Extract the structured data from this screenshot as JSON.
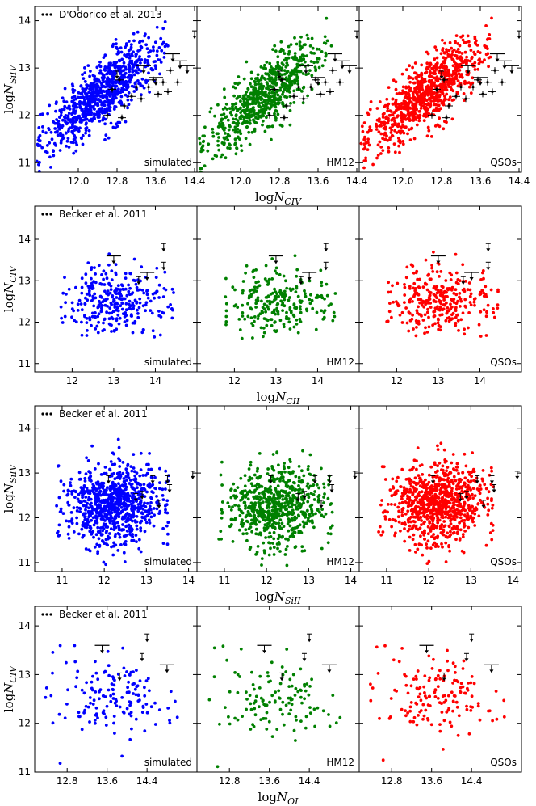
{
  "colors": {
    "simulated": "#0000ff",
    "HM12": "#008000",
    "QSOs": "#ff0000",
    "observations": "#000000"
  },
  "chart_data": [
    {
      "type": "scatter",
      "row_id": "row1",
      "legend": "D'Odorico et al. 2013",
      "xlabel": "logN_CIV",
      "ylabel": "logN_SiIV",
      "xlim": [
        11.1,
        14.45
      ],
      "ylim": [
        10.8,
        14.3
      ],
      "xticks": [
        "12.0",
        "12.8",
        "13.6",
        "14.4"
      ],
      "yticks": [
        "11",
        "12",
        "13",
        "14"
      ],
      "panels": [
        "simulated",
        "HM12",
        "QSOs"
      ],
      "simulated_cloud": {
        "x_range": [
          11.2,
          13.8
        ],
        "slope": 0.75,
        "intercept": 3.1,
        "scatter": 0.32,
        "n": 850
      },
      "observations": [
        {
          "x": 12.7,
          "y": 12.55,
          "type": "point"
        },
        {
          "x": 12.85,
          "y": 12.75,
          "type": "point"
        },
        {
          "x": 12.95,
          "y": 12.2,
          "type": "point"
        },
        {
          "x": 13.1,
          "y": 12.4,
          "type": "point"
        },
        {
          "x": 13.2,
          "y": 12.6,
          "type": "point"
        },
        {
          "x": 13.3,
          "y": 12.35,
          "type": "point"
        },
        {
          "x": 13.45,
          "y": 12.6,
          "type": "point"
        },
        {
          "x": 13.55,
          "y": 12.75,
          "type": "point"
        },
        {
          "x": 13.65,
          "y": 12.45,
          "type": "point"
        },
        {
          "x": 13.75,
          "y": 12.7,
          "type": "point"
        },
        {
          "x": 13.85,
          "y": 12.5,
          "type": "point"
        },
        {
          "x": 13.9,
          "y": 12.95,
          "type": "point"
        },
        {
          "x": 14.05,
          "y": 12.7,
          "type": "point"
        },
        {
          "x": 12.6,
          "y": 12.0,
          "type": "point"
        },
        {
          "x": 12.9,
          "y": 11.95,
          "type": "point"
        },
        {
          "x": 13.35,
          "y": 13.05,
          "type": "lower_x"
        },
        {
          "x": 13.6,
          "y": 12.8,
          "type": "lower_x"
        },
        {
          "x": 13.95,
          "y": 13.3,
          "type": "lower_x"
        },
        {
          "x": 14.1,
          "y": 13.15,
          "type": "lower_x"
        },
        {
          "x": 14.25,
          "y": 13.05,
          "type": "lower_x"
        },
        {
          "x": 14.4,
          "y": 13.7,
          "type": "upper_y"
        },
        {
          "x": 12.8,
          "y": 12.85,
          "type": "upper_y"
        }
      ]
    },
    {
      "type": "scatter",
      "row_id": "row2",
      "legend": "Becker et al. 2011",
      "xlabel": "logN_CII",
      "ylabel": "logN_CIV",
      "xlim": [
        11.1,
        15.0
      ],
      "ylim": [
        10.8,
        14.8
      ],
      "xticks": [
        "12",
        "13",
        "14"
      ],
      "yticks": [
        "11",
        "12",
        "13",
        "14"
      ],
      "panels": [
        "simulated",
        "HM12",
        "QSOs"
      ],
      "simulated_cloud": {
        "x_range": [
          11.8,
          14.4
        ],
        "slope": 0.0,
        "intercept": 12.5,
        "scatter": 0.42,
        "n": 300
      },
      "observations": [
        {
          "x": 13.0,
          "y": 13.6,
          "type": "lower_x"
        },
        {
          "x": 13.8,
          "y": 13.2,
          "type": "lower_x"
        },
        {
          "x": 14.2,
          "y": 13.8,
          "type": "upper_y"
        },
        {
          "x": 14.2,
          "y": 13.35,
          "type": "upper_y"
        },
        {
          "x": 13.6,
          "y": 13.0,
          "type": "upper_y"
        }
      ]
    },
    {
      "type": "scatter",
      "row_id": "row3",
      "legend": "Becker et al. 2011",
      "xlabel": "logN_SiII",
      "ylabel": "logN_SiIV",
      "xlim": [
        10.35,
        14.2
      ],
      "ylim": [
        10.8,
        14.5
      ],
      "xticks": [
        "11",
        "12",
        "13",
        "14"
      ],
      "yticks": [
        "11",
        "12",
        "13",
        "14"
      ],
      "panels": [
        "simulated",
        "HM12",
        "QSOs"
      ],
      "simulated_cloud": {
        "x_range": [
          10.9,
          13.5
        ],
        "slope": 0.0,
        "intercept": 12.3,
        "scatter": 0.45,
        "n": 850
      },
      "observations": [
        {
          "x": 12.1,
          "y": 12.85,
          "type": "upper_y"
        },
        {
          "x": 12.9,
          "y": 12.5,
          "type": "upper_y"
        },
        {
          "x": 12.75,
          "y": 12.45,
          "type": "upper_y"
        },
        {
          "x": 13.15,
          "y": 12.85,
          "type": "upper_y"
        },
        {
          "x": 13.3,
          "y": 12.3,
          "type": "upper_y"
        },
        {
          "x": 13.5,
          "y": 12.85,
          "type": "upper_y"
        },
        {
          "x": 13.55,
          "y": 12.65,
          "type": "upper_y"
        },
        {
          "x": 14.1,
          "y": 12.95,
          "type": "upper_y"
        }
      ]
    },
    {
      "type": "scatter",
      "row_id": "row4",
      "legend": "Becker et al. 2011",
      "xlabel": "logN_OI",
      "ylabel": "logN_CIV",
      "xlim": [
        12.15,
        15.4
      ],
      "ylim": [
        11.0,
        14.4
      ],
      "xticks": [
        "12.8",
        "13.6",
        "14.4"
      ],
      "yticks": [
        "11",
        "12",
        "13",
        "14"
      ],
      "panels": [
        "simulated",
        "HM12",
        "QSOs"
      ],
      "simulated_cloud": {
        "x_range": [
          12.4,
          15.0
        ],
        "slope": 0.0,
        "intercept": 12.5,
        "scatter": 0.42,
        "n": 150
      },
      "observations": [
        {
          "x": 13.5,
          "y": 13.6,
          "type": "lower_x"
        },
        {
          "x": 14.8,
          "y": 13.2,
          "type": "lower_x"
        },
        {
          "x": 14.4,
          "y": 13.75,
          "type": "upper_y"
        },
        {
          "x": 14.3,
          "y": 13.35,
          "type": "upper_y"
        },
        {
          "x": 13.85,
          "y": 12.95,
          "type": "upper_y"
        }
      ]
    }
  ]
}
